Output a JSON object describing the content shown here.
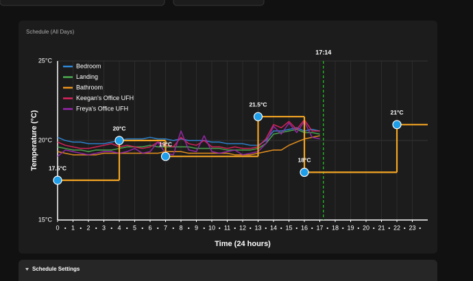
{
  "panel": {
    "title": "Schedule (All Days)"
  },
  "settings_section": {
    "title": "Schedule Settings"
  },
  "chart_data": {
    "type": "line",
    "xlabel": "Time (24 hours)",
    "ylabel": "Temperature (°C)",
    "xlim": [
      0,
      24
    ],
    "ylim": [
      15,
      25
    ],
    "xticks": [
      0,
      1,
      2,
      3,
      4,
      5,
      6,
      7,
      8,
      9,
      10,
      11,
      12,
      13,
      14,
      15,
      16,
      17,
      18,
      19,
      20,
      21,
      22,
      23
    ],
    "yticks": [
      {
        "value": 15,
        "label": "15°C"
      },
      {
        "value": 20,
        "label": "20°C"
      },
      {
        "value": 25,
        "label": "25°C"
      }
    ],
    "grid": true,
    "legend": "upper-left",
    "now": {
      "x": 17.233,
      "label": "17:14",
      "color": "#22c322"
    },
    "x": [
      0,
      0.5,
      1,
      1.5,
      2,
      2.5,
      3,
      3.5,
      4,
      4.5,
      5,
      5.5,
      6,
      6.5,
      7,
      7.5,
      8,
      8.5,
      9,
      9.5,
      10,
      10.5,
      11,
      11.5,
      12,
      12.5,
      13,
      13.5,
      14,
      14.5,
      15,
      15.5,
      16,
      16.5,
      17
    ],
    "series": [
      {
        "name": "Bedroom",
        "color": "#2f86d6",
        "values": [
          20.2,
          20.0,
          19.9,
          19.9,
          19.8,
          19.8,
          19.8,
          19.9,
          20.0,
          20.1,
          20.1,
          20.1,
          20.2,
          20.1,
          20.1,
          20.0,
          20.1,
          20.0,
          20.0,
          20.0,
          19.9,
          19.9,
          19.8,
          19.8,
          19.8,
          19.7,
          19.7,
          20.0,
          20.6,
          20.6,
          20.7,
          20.8,
          20.6,
          20.7,
          20.6
        ]
      },
      {
        "name": "Landing",
        "color": "#4caf50",
        "values": [
          19.6,
          19.5,
          19.4,
          19.4,
          19.3,
          19.4,
          19.4,
          19.4,
          19.5,
          19.6,
          19.6,
          19.6,
          19.7,
          19.6,
          19.6,
          19.6,
          19.6,
          19.6,
          19.5,
          19.5,
          19.5,
          19.5,
          19.4,
          19.4,
          19.4,
          19.4,
          19.5,
          19.8,
          20.4,
          20.5,
          20.6,
          20.7,
          20.5,
          20.5,
          20.4
        ]
      },
      {
        "name": "Bathroom",
        "color": "#f0961e",
        "values": [
          19.3,
          19.2,
          19.1,
          19.1,
          19.1,
          19.1,
          19.2,
          19.2,
          19.2,
          19.2,
          19.2,
          19.2,
          19.2,
          19.2,
          19.3,
          19.3,
          19.3,
          19.2,
          19.2,
          19.2,
          19.2,
          19.2,
          19.2,
          19.1,
          19.1,
          19.1,
          19.2,
          19.3,
          19.4,
          19.4,
          19.7,
          19.9,
          20.1,
          20.2,
          20.3
        ]
      },
      {
        "name": "Keegan's Office UFH",
        "color": "#e0245e",
        "values": [
          19.9,
          19.7,
          19.6,
          19.5,
          19.5,
          19.6,
          19.7,
          19.8,
          19.6,
          19.7,
          19.6,
          19.5,
          19.6,
          19.9,
          19.7,
          19.6,
          20.2,
          19.8,
          19.7,
          20.0,
          19.6,
          19.6,
          19.5,
          19.6,
          19.5,
          19.5,
          19.6,
          20.1,
          21.0,
          20.8,
          21.2,
          20.7,
          21.3,
          20.6,
          20.6
        ]
      },
      {
        "name": "Freya's Office UFH",
        "color": "#9c27b0",
        "values": [
          19.0,
          19.4,
          19.3,
          19.2,
          19.1,
          19.2,
          19.3,
          19.3,
          19.2,
          19.3,
          19.5,
          19.2,
          19.3,
          19.9,
          19.2,
          19.1,
          20.6,
          19.4,
          19.3,
          20.3,
          19.3,
          19.2,
          19.3,
          19.4,
          19.1,
          19.2,
          19.3,
          19.8,
          20.9,
          20.4,
          21.1,
          20.5,
          21.2,
          20.2,
          20.1
        ]
      }
    ],
    "schedule": {
      "color": "#f5a623",
      "point_color": "#1e9ee8",
      "x": [
        0,
        4,
        7,
        13,
        16,
        22
      ],
      "values": [
        17.5,
        20,
        19,
        21.5,
        18,
        21
      ],
      "value_labels": [
        "17.5°C",
        "20°C",
        "19°C",
        "21.5°C",
        "18°C",
        "21°C"
      ]
    }
  }
}
